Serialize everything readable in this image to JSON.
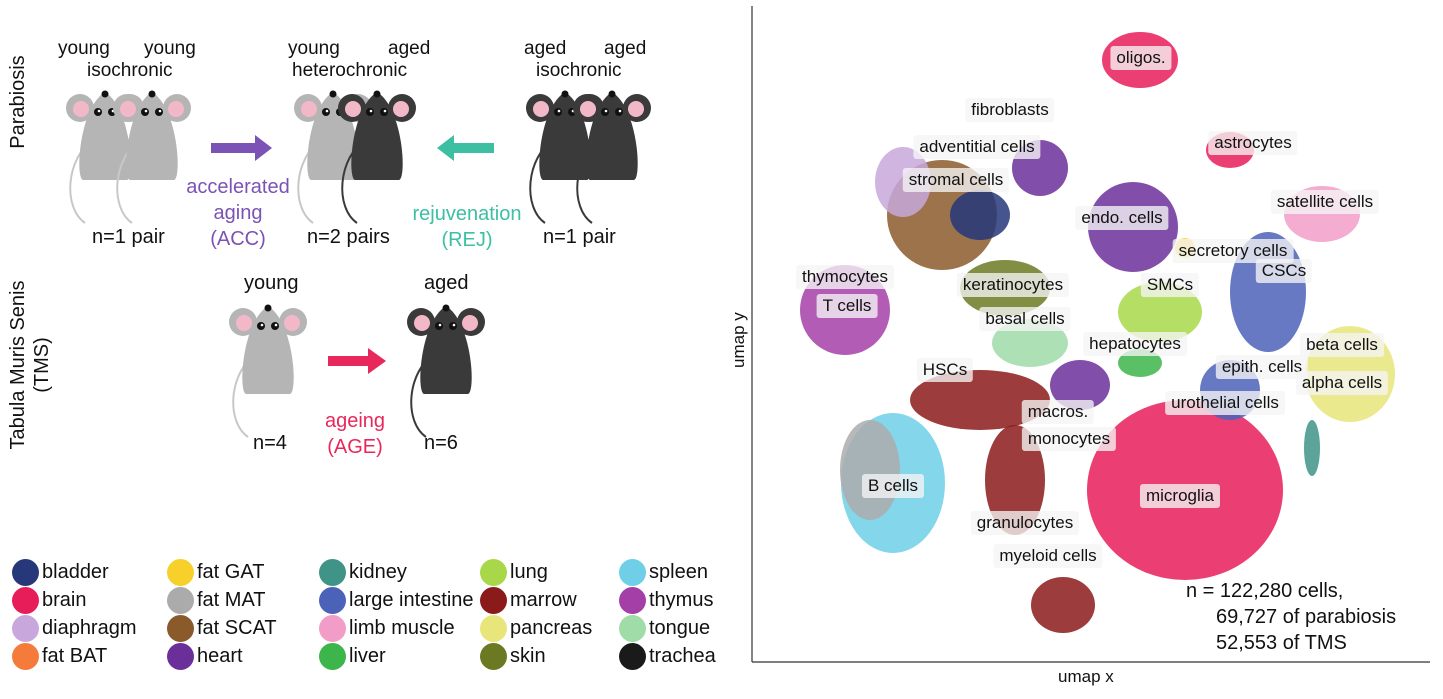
{
  "experiments": {
    "parabiosis_label": "Parabiosis",
    "tms_label": "Tabula Muris Senis",
    "tms_abbrev": "(TMS)",
    "pairs": [
      {
        "left": "young",
        "right": "young",
        "kind": "isochronic",
        "n": "n=1 pair"
      },
      {
        "left": "young",
        "right": "aged",
        "kind": "heterochronic",
        "n": "n=2 pairs"
      },
      {
        "left": "aged",
        "right": "aged",
        "kind": "isochronic",
        "n": "n=1 pair"
      }
    ],
    "acc": {
      "line1": "accelerated",
      "line2": "aging",
      "line3": "(ACC)",
      "color": "#7b52b5"
    },
    "rej": {
      "line1": "rejuvenation",
      "line2": "(REJ)",
      "color": "#3dbfa4"
    },
    "tms": {
      "young_label": "young",
      "aged_label": "aged",
      "young_n": "n=4",
      "aged_n": "n=6",
      "age_line1": "ageing",
      "age_line2": "(AGE)",
      "age_color": "#e8285a"
    },
    "young_mouse_color": "#b5b5b5",
    "aged_mouse_color": "#3a3a3a"
  },
  "legend": [
    {
      "label": "bladder",
      "color": "#26377a"
    },
    {
      "label": "brain",
      "color": "#e71d5a"
    },
    {
      "label": "diaphragm",
      "color": "#c8a8dc"
    },
    {
      "label": "fat BAT",
      "color": "#f47b3a"
    },
    {
      "label": "fat GAT",
      "color": "#f7d02a"
    },
    {
      "label": "fat MAT",
      "color": "#ababab"
    },
    {
      "label": "fat SCAT",
      "color": "#8b5a2b"
    },
    {
      "label": "heart",
      "color": "#6b2f9a"
    },
    {
      "label": "kidney",
      "color": "#3f9487"
    },
    {
      "label": "large intestine",
      "color": "#4c62b8"
    },
    {
      "label": "limb muscle",
      "color": "#f29dc8"
    },
    {
      "label": "liver",
      "color": "#3cb54a"
    },
    {
      "label": "lung",
      "color": "#a8d84a"
    },
    {
      "label": "marrow",
      "color": "#8b1a1a"
    },
    {
      "label": "pancreas",
      "color": "#e8e57a"
    },
    {
      "label": "skin",
      "color": "#6b7a22"
    },
    {
      "label": "spleen",
      "color": "#6ecfe6"
    },
    {
      "label": "thymus",
      "color": "#a43fa8"
    },
    {
      "label": "tongue",
      "color": "#9fdca8"
    },
    {
      "label": "trachea",
      "color": "#1a1a1a"
    }
  ],
  "umap": {
    "xlabel": "umap x",
    "ylabel": "umap y",
    "n_line1": "n = 122,280 cells,",
    "n_line2": "69,727 of parabiosis",
    "n_line3": "52,553 of TMS",
    "cluster_labels": {
      "oligos": "oligos.",
      "fibroblasts": "fibroblasts",
      "adventitial": "adventitial cells",
      "stromal": "stromal cells",
      "astrocytes": "astrocytes",
      "satellite": "satellite cells",
      "endo": "endo. cells",
      "secretory": "secretory cells",
      "cscs": "CSCs",
      "thymocytes": "thymocytes",
      "tcells": "T cells",
      "keratinocytes": "keratinocytes",
      "basal": "basal cells",
      "smcs": "SMCs",
      "hepatocytes": "hepatocytes",
      "hscs": "HSCs",
      "epith": "epith. cells",
      "beta": "beta cells",
      "alpha": "alpha cells",
      "urothelial": "urothelial cells",
      "macros": "macros.",
      "monocytes": "monocytes",
      "bcells": "B cells",
      "microglia": "microglia",
      "granulocytes": "granulocytes",
      "myeloid": "myeloid cells"
    }
  }
}
